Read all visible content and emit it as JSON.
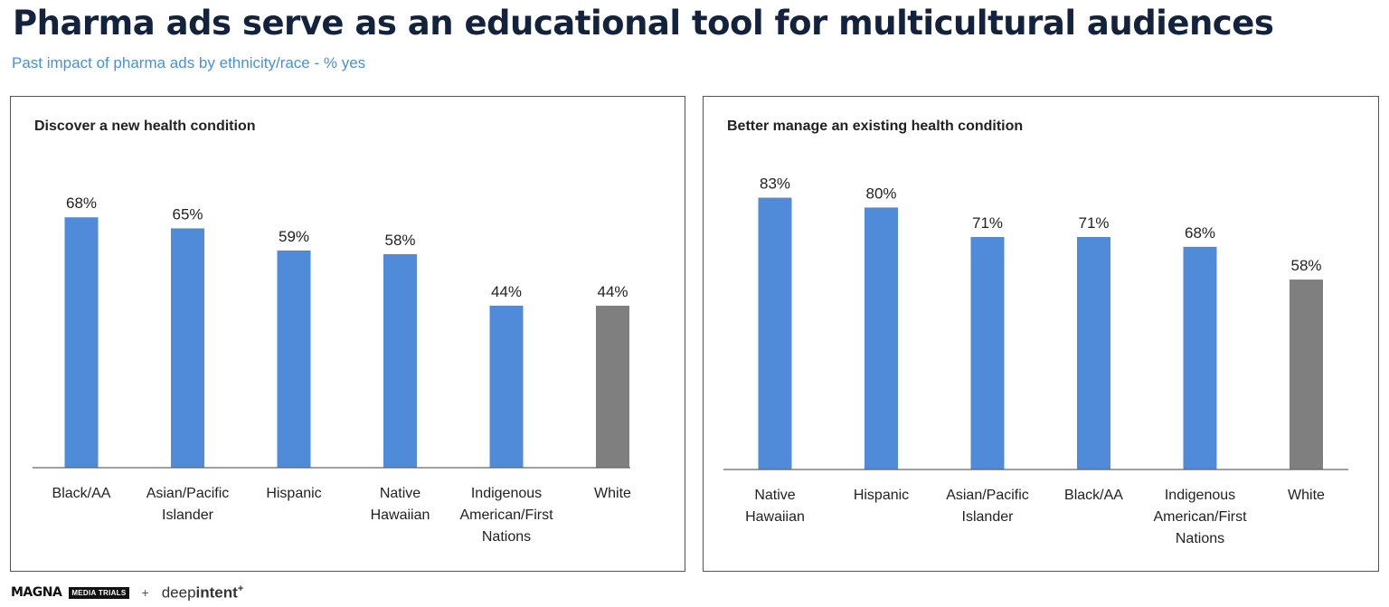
{
  "title": "Pharma ads serve as an educational tool for multicultural audiences",
  "subtitle": "Past impact of pharma ads by ethnicity/race - % yes",
  "colors": {
    "blue": "#4f8bd8",
    "gray": "#7f7f7f",
    "title": "#14233d",
    "subtitle": "#4a90d9"
  },
  "chart_data": [
    {
      "type": "bar",
      "title": "Discover a new health condition",
      "categories": [
        [
          "Black/AA"
        ],
        [
          "Asian/Pacific",
          "Islander"
        ],
        [
          "Hispanic"
        ],
        [
          "Native",
          "Hawaiian"
        ],
        [
          "Indigenous",
          "American/First",
          "Nations"
        ],
        [
          "White"
        ]
      ],
      "values": [
        68,
        65,
        59,
        58,
        44,
        44
      ],
      "data_labels": [
        "68%",
        "65%",
        "59%",
        "58%",
        "44%",
        "44%"
      ],
      "bar_colors": [
        "blue",
        "blue",
        "blue",
        "blue",
        "blue",
        "gray"
      ],
      "ylim": [
        0,
        100
      ],
      "grid": false,
      "legend": "none"
    },
    {
      "type": "bar",
      "title": "Better manage an existing health condition",
      "categories": [
        [
          "Native",
          "Hawaiian"
        ],
        [
          "Hispanic"
        ],
        [
          "Asian/Pacific",
          "Islander"
        ],
        [
          "Black/AA"
        ],
        [
          "Indigenous",
          "American/First",
          "Nations"
        ],
        [
          "White"
        ]
      ],
      "values": [
        83,
        80,
        71,
        71,
        68,
        58
      ],
      "data_labels": [
        "83%",
        "80%",
        "71%",
        "71%",
        "68%",
        "58%"
      ],
      "bar_colors": [
        "blue",
        "blue",
        "blue",
        "blue",
        "blue",
        "gray"
      ],
      "ylim": [
        0,
        100
      ],
      "grid": false,
      "legend": "none"
    }
  ],
  "footer": {
    "logo_magna": "MAGNA",
    "logo_trials": "MEDIA TRIALS",
    "separator": "+",
    "logo_deep": "deep",
    "logo_intent": "intent",
    "logo_plus": "+"
  }
}
